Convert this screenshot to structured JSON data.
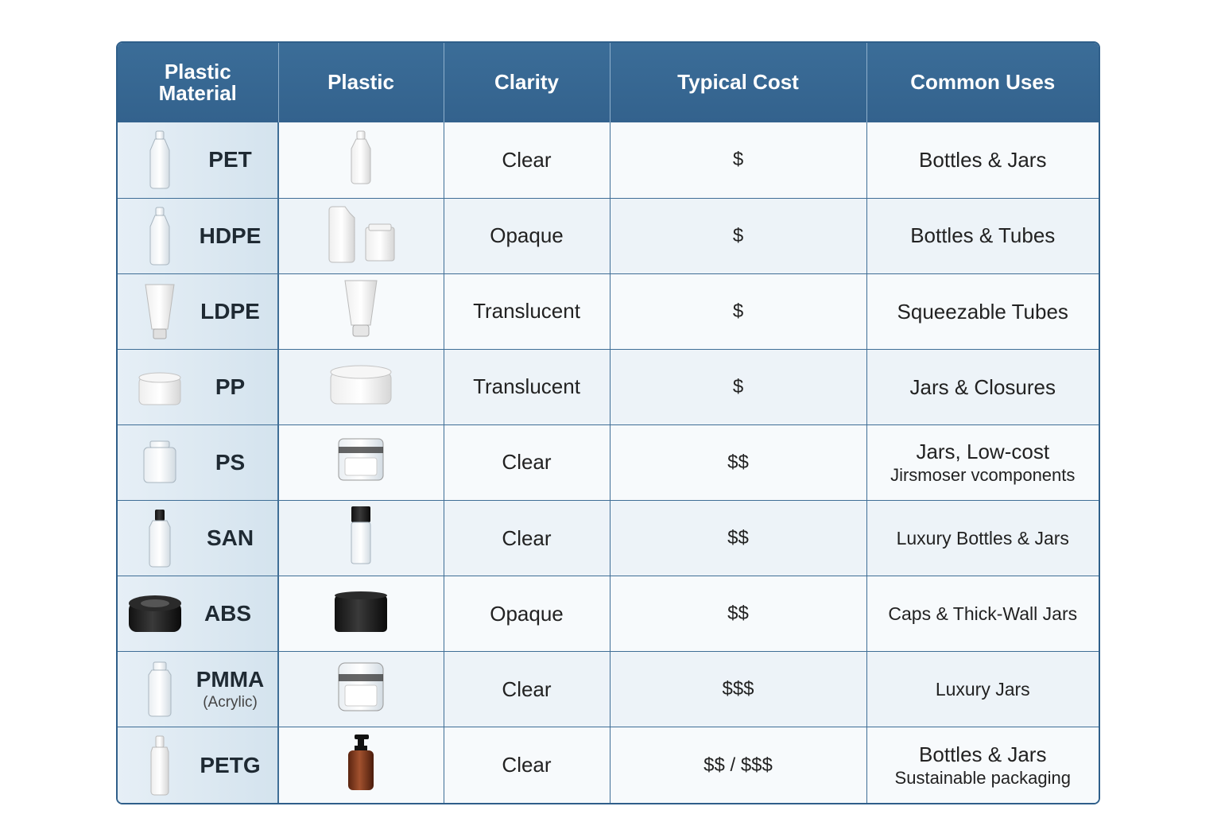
{
  "headers": [
    "Plastic Material",
    "Plastic",
    "Clarity",
    "Typical Cost",
    "Common Uses"
  ],
  "rows": [
    {
      "material": "PET",
      "material_icon": "bottle-clear-icon",
      "picture_icon": "bottle-icon",
      "clarity": "Clear",
      "cost": "$",
      "uses": "Bottles & Jars"
    },
    {
      "material": "HDPE",
      "material_icon": "bottle-clear-icon",
      "picture_icon": "jug-and-jar-icon",
      "clarity": "Opaque",
      "cost": "$",
      "uses": "Bottles & Tubes"
    },
    {
      "material": "LDPE",
      "material_icon": "tube-icon",
      "picture_icon": "tube-icon",
      "clarity": "Translucent",
      "cost": "$",
      "uses": "Squeezable Tubes"
    },
    {
      "material": "PP",
      "material_icon": "jar-white-icon",
      "picture_icon": "jar-white-icon",
      "clarity": "Translucent",
      "cost": "$",
      "uses": "Jars & Closures"
    },
    {
      "material": "PS",
      "material_icon": "jar-clear-icon",
      "picture_icon": "jar-clear-icon",
      "clarity": "Clear",
      "cost": "$$",
      "uses": "Jars, Low-cost",
      "uses_line2": "Jirsmoser vcomponents"
    },
    {
      "material": "SAN",
      "material_icon": "bottle-black-cap-icon",
      "picture_icon": "bottle-black-cap-icon",
      "clarity": "Clear",
      "cost": "$$",
      "uses": "Luxury Bottles & Jars"
    },
    {
      "material": "ABS",
      "material_icon": "jar-black-icon",
      "picture_icon": "jar-black-icon",
      "clarity": "Opaque",
      "cost": "$$",
      "uses": "Caps & Thick-Wall Jars"
    },
    {
      "material": "PMMA",
      "material_sub": "(Acrylic)",
      "material_icon": "bottle-clear-icon",
      "picture_icon": "jar-clear-icon",
      "clarity": "Clear",
      "cost": "$$$",
      "uses": "Luxury Jars"
    },
    {
      "material": "PETG",
      "material_icon": "bottle-clear-icon",
      "picture_icon": "pump-bottle-amber-icon",
      "clarity": "Clear",
      "cost": "$$ / $$$",
      "uses": "Bottles & Jars",
      "uses_line2": "Sustainable packaging"
    }
  ],
  "colors": {
    "header": "#35648f",
    "border": "#3f6e96",
    "material_cell": "#dbe7f0",
    "amber": "#8a3b1c"
  }
}
